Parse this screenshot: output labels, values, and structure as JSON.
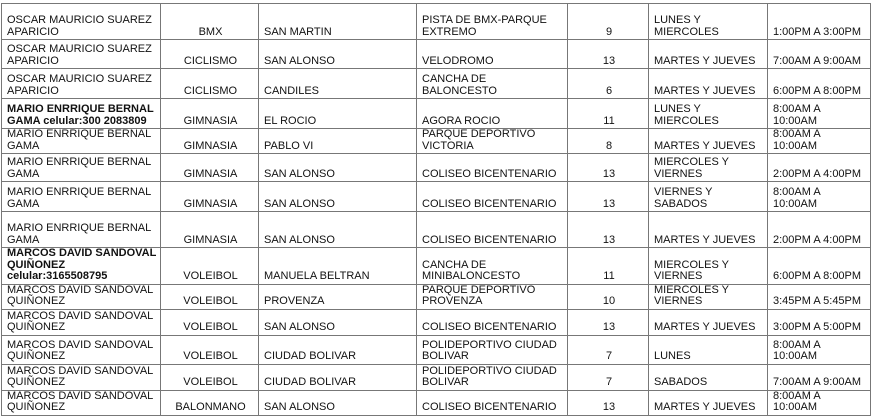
{
  "rows": [
    {
      "name": "OSCAR MAURICIO SUAREZ APARICIO",
      "bold": false,
      "sport": "BMX",
      "barrio": "SAN MARTIN",
      "venue": "PISTA DE BMX-PARQUE EXTREMO",
      "count": "9",
      "days": "LUNES Y MIERCOLES",
      "time": "1:00PM A 3:00PM"
    },
    {
      "name": "OSCAR MAURICIO SUAREZ APARICIO",
      "bold": false,
      "sport": "CICLISMO",
      "barrio": "SAN ALONSO",
      "venue": "VELODROMO",
      "count": "13",
      "days": "MARTES Y JUEVES",
      "time": "7:00AM A 9:00AM"
    },
    {
      "name": "OSCAR MAURICIO SUAREZ APARICIO",
      "bold": false,
      "sport": "CICLISMO",
      "barrio": "CANDILES",
      "venue": "CANCHA DE BALONCESTO",
      "count": "6",
      "days": "MARTES Y JUEVES",
      "time": "6:00PM A 8:00PM"
    },
    {
      "name": "MARIO ENRRIQUE BERNAL GAMA celular:300 2083809",
      "bold": true,
      "sport": "GIMNASIA",
      "barrio": "EL ROCIO",
      "venue": "AGORA ROCIO",
      "count": "11",
      "days": "LUNES Y MIERCOLES",
      "time": "8:00AM A 10:00AM"
    },
    {
      "name": "MARIO ENRRIQUE BERNAL GAMA",
      "bold": false,
      "sport": "GIMNASIA",
      "barrio": "PABLO VI",
      "venue": "PARQUE DEPORTIVO VICTORIA",
      "count": "8",
      "days": "MARTES Y JUEVES",
      "time": "8:00AM A 10:00AM"
    },
    {
      "name": "MARIO ENRRIQUE BERNAL GAMA",
      "bold": false,
      "sport": "GIMNASIA",
      "barrio": "SAN ALONSO",
      "venue": "COLISEO BICENTENARIO",
      "count": "13",
      "days": "MIERCOLES Y VIERNES",
      "time": "2:00PM A 4:00PM"
    },
    {
      "name": "MARIO ENRRIQUE BERNAL GAMA",
      "bold": false,
      "sport": "GIMNASIA",
      "barrio": "SAN ALONSO",
      "venue": "COLISEO BICENTENARIO",
      "count": "13",
      "days": "VIERNES Y SABADOS",
      "time": "8:00AM A 10:00AM"
    },
    {
      "name": "MARIO ENRRIQUE BERNAL GAMA",
      "bold": false,
      "sport": "GIMNASIA",
      "barrio": "SAN ALONSO",
      "venue": "COLISEO BICENTENARIO",
      "count": "13",
      "days": "MARTES Y JUEVES",
      "time": "2:00PM A 4:00PM"
    },
    {
      "name": "MARCOS DAVID SANDOVAL QUIÑONEZ celular:3165508795",
      "bold": true,
      "sport": "VOLEIBOL",
      "barrio": "MANUELA BELTRAN",
      "venue": "CANCHA DE MINIBALONCESTO",
      "count": "11",
      "days": "MIERCOLES Y VIERNES",
      "time": "6:00PM A 8:00PM"
    },
    {
      "name": "MARCOS DAVID SANDOVAL QUIÑONEZ",
      "bold": false,
      "sport": "VOLEIBOL",
      "barrio": "PROVENZA",
      "venue": "PARQUE DEPORTIVO PROVENZA",
      "count": "10",
      "days": "MIERCOLES Y VIERNES",
      "time": "3:45PM A 5:45PM"
    },
    {
      "name": "MARCOS DAVID SANDOVAL QUIÑONEZ",
      "bold": false,
      "sport": "VOLEIBOL",
      "barrio": "SAN ALONSO",
      "venue": "COLISEO BICENTENARIO",
      "count": "13",
      "days": "MARTES Y JUEVES",
      "time": "3:00PM A 5:00PM"
    },
    {
      "name": "MARCOS DAVID SANDOVAL QUIÑONEZ",
      "bold": false,
      "sport": "VOLEIBOL",
      "barrio": "CIUDAD BOLIVAR",
      "venue": "POLIDEPORTIVO CIUDAD BOLIVAR",
      "count": "7",
      "days": "LUNES",
      "time": "8:00AM A 10:00AM"
    },
    {
      "name": "MARCOS DAVID SANDOVAL QUIÑONEZ",
      "bold": false,
      "sport": "VOLEIBOL",
      "barrio": "CIUDAD BOLIVAR",
      "venue": "POLIDEPORTIVO CIUDAD BOLIVAR",
      "count": "7",
      "days": "SABADOS",
      "time": "7:00AM A 9:00AM"
    },
    {
      "name": "MARCOS DAVID SANDOVAL QUIÑONEZ",
      "bold": false,
      "sport": "BALONMANO",
      "barrio": "SAN ALONSO",
      "venue": "COLISEO BICENTENARIO",
      "count": "13",
      "days": "MARTES Y JUEVES",
      "time": "8:00AM A 10:00AM"
    }
  ]
}
